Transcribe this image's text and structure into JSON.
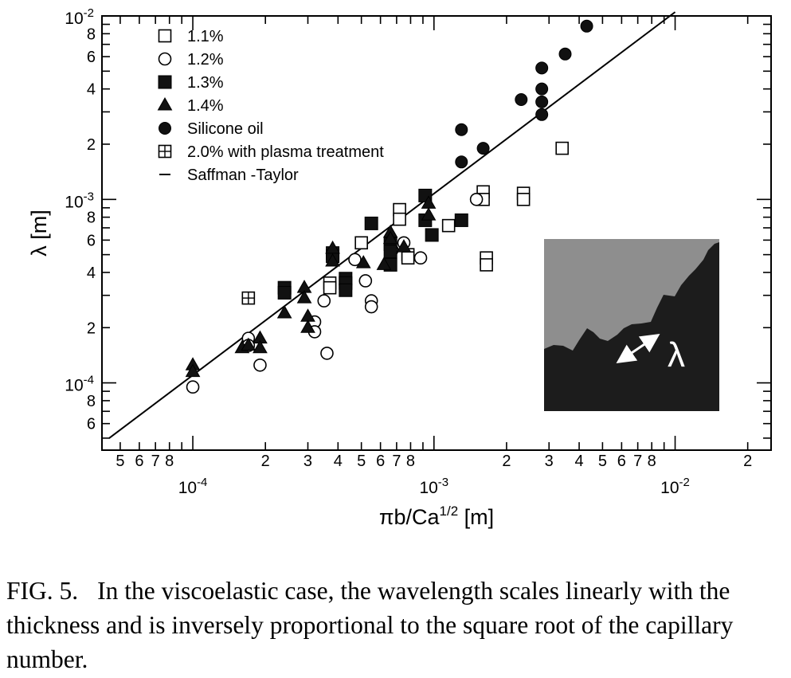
{
  "chart_data": {
    "type": "scatter",
    "xscale": "log",
    "yscale": "log",
    "xlabel": "πb/Ca",
    "xlabel_sup": "1/2",
    "xlabel_unit": " [m]",
    "ylabel": "λ [m]",
    "xlim": [
      4.2e-05,
      0.025
    ],
    "ylim": [
      4.3e-05,
      0.01
    ],
    "x_decade_labels": [
      {
        "x": 0.0001,
        "base": "10",
        "exp": "-4"
      },
      {
        "x": 0.001,
        "base": "10",
        "exp": "-3"
      },
      {
        "x": 0.01,
        "base": "10",
        "exp": "-2"
      }
    ],
    "x_minor_labels": [
      {
        "x": 5e-05,
        "t": "5"
      },
      {
        "x": 6e-05,
        "t": "6"
      },
      {
        "x": 7e-05,
        "t": "7"
      },
      {
        "x": 8e-05,
        "t": "8"
      },
      {
        "x": 0.0002,
        "t": "2"
      },
      {
        "x": 0.0003,
        "t": "3"
      },
      {
        "x": 0.0004,
        "t": "4"
      },
      {
        "x": 0.0005,
        "t": "5"
      },
      {
        "x": 0.0006,
        "t": "6"
      },
      {
        "x": 0.0007,
        "t": "7"
      },
      {
        "x": 0.0008,
        "t": "8"
      },
      {
        "x": 0.002,
        "t": "2"
      },
      {
        "x": 0.003,
        "t": "3"
      },
      {
        "x": 0.004,
        "t": "4"
      },
      {
        "x": 0.005,
        "t": "5"
      },
      {
        "x": 0.006,
        "t": "6"
      },
      {
        "x": 0.007,
        "t": "7"
      },
      {
        "x": 0.008,
        "t": "8"
      },
      {
        "x": 0.02,
        "t": "2"
      }
    ],
    "y_decade_labels": [
      {
        "y": 0.0001,
        "base": "10",
        "exp": "-4"
      },
      {
        "y": 0.001,
        "base": "10",
        "exp": "-3"
      },
      {
        "y": 0.01,
        "base": "10",
        "exp": "-2"
      }
    ],
    "y_minor_labels": [
      {
        "y": 6e-05,
        "t": "6"
      },
      {
        "y": 8e-05,
        "t": "8"
      },
      {
        "y": 0.0002,
        "t": "2"
      },
      {
        "y": 0.0004,
        "t": "4"
      },
      {
        "y": 0.0006,
        "t": "6"
      },
      {
        "y": 0.0008,
        "t": "8"
      },
      {
        "y": 0.002,
        "t": "2"
      },
      {
        "y": 0.004,
        "t": "4"
      },
      {
        "y": 0.006,
        "t": "6"
      },
      {
        "y": 0.008,
        "t": "8"
      }
    ],
    "legend_position": "top-left",
    "series": [
      {
        "name": "1.1%",
        "marker": "square-open",
        "points": [
          [
            0.00037,
            0.00035
          ],
          [
            0.00037,
            0.00033
          ],
          [
            0.0005,
            0.00058
          ],
          [
            0.00072,
            0.00088
          ],
          [
            0.00072,
            0.00078
          ],
          [
            0.00078,
            0.0005
          ],
          [
            0.00078,
            0.00048
          ],
          [
            0.00115,
            0.00072
          ],
          [
            0.0016,
            0.0011
          ],
          [
            0.0016,
            0.001
          ],
          [
            0.00165,
            0.00048
          ],
          [
            0.00165,
            0.00044
          ],
          [
            0.00235,
            0.00108
          ],
          [
            0.00235,
            0.001
          ],
          [
            0.0034,
            0.0019
          ]
        ]
      },
      {
        "name": "1.2%",
        "marker": "circle-open",
        "points": [
          [
            0.0001,
            9.5e-05
          ],
          [
            0.00017,
            0.000175
          ],
          [
            0.00017,
            0.00016
          ],
          [
            0.00019,
            0.000125
          ],
          [
            0.00032,
            0.000215
          ],
          [
            0.00032,
            0.00019
          ],
          [
            0.00035,
            0.00028
          ],
          [
            0.00036,
            0.000145
          ],
          [
            0.00047,
            0.00047
          ],
          [
            0.00052,
            0.00036
          ],
          [
            0.00055,
            0.00028
          ],
          [
            0.00055,
            0.00026
          ],
          [
            0.00067,
            0.00053
          ],
          [
            0.00075,
            0.00058
          ],
          [
            0.00088,
            0.00048
          ],
          [
            0.0015,
            0.001
          ]
        ]
      },
      {
        "name": "1.3%",
        "marker": "square-filled",
        "points": [
          [
            0.00024,
            0.00033
          ],
          [
            0.00024,
            0.00031
          ],
          [
            0.00038,
            0.00051
          ],
          [
            0.00038,
            0.00049
          ],
          [
            0.00043,
            0.00037
          ],
          [
            0.00043,
            0.00035
          ],
          [
            0.00043,
            0.00032
          ],
          [
            0.00055,
            0.00074
          ],
          [
            0.00066,
            0.00057
          ],
          [
            0.00066,
            0.00052
          ],
          [
            0.00066,
            0.00044
          ],
          [
            0.00092,
            0.00105
          ],
          [
            0.00092,
            0.00077
          ],
          [
            0.00098,
            0.00064
          ],
          [
            0.0013,
            0.00077
          ]
        ]
      },
      {
        "name": "1.4%",
        "marker": "triangle-filled",
        "points": [
          [
            0.0001,
            0.000125
          ],
          [
            0.0001,
            0.000115
          ],
          [
            0.00016,
            0.000155
          ],
          [
            0.00017,
            0.00016
          ],
          [
            0.00019,
            0.000175
          ],
          [
            0.00019,
            0.000155
          ],
          [
            0.00024,
            0.00024
          ],
          [
            0.00029,
            0.00033
          ],
          [
            0.00029,
            0.00029
          ],
          [
            0.0003,
            0.00023
          ],
          [
            0.0003,
            0.0002
          ],
          [
            0.00038,
            0.00054
          ],
          [
            0.00038,
            0.00046
          ],
          [
            0.00051,
            0.00045
          ],
          [
            0.00062,
            0.00044
          ],
          [
            0.00066,
            0.00066
          ],
          [
            0.00066,
            0.00061
          ],
          [
            0.00075,
            0.00055
          ],
          [
            0.00095,
            0.00095
          ],
          [
            0.00095,
            0.00082
          ]
        ]
      },
      {
        "name": "Silicone oil",
        "marker": "circle-filled",
        "points": [
          [
            0.0013,
            0.0024
          ],
          [
            0.0013,
            0.0016
          ],
          [
            0.0016,
            0.0019
          ],
          [
            0.0023,
            0.0035
          ],
          [
            0.0028,
            0.0052
          ],
          [
            0.0028,
            0.004
          ],
          [
            0.0028,
            0.0034
          ],
          [
            0.0028,
            0.0029
          ],
          [
            0.0035,
            0.0062
          ],
          [
            0.0043,
            0.0088
          ]
        ]
      },
      {
        "name": "2.0% with plasma treatment",
        "marker": "square-plus",
        "points": [
          [
            0.00017,
            0.00029
          ]
        ]
      }
    ],
    "fit_line": {
      "name": "Saffman -Taylor",
      "from": [
        4.5e-05,
        5e-05
      ],
      "to": [
        0.01,
        0.0105
      ]
    },
    "inset": {
      "label": "λ",
      "colors": {
        "light": "#8e8e8e",
        "dark": "#1c1c1c",
        "arrow": "#ffffff"
      }
    }
  },
  "caption": {
    "label": "FIG. 5.",
    "text": "In the viscoelastic case, the wavelength scales linearly with the thickness and is inversely proportional to the square root of the capillary number."
  }
}
